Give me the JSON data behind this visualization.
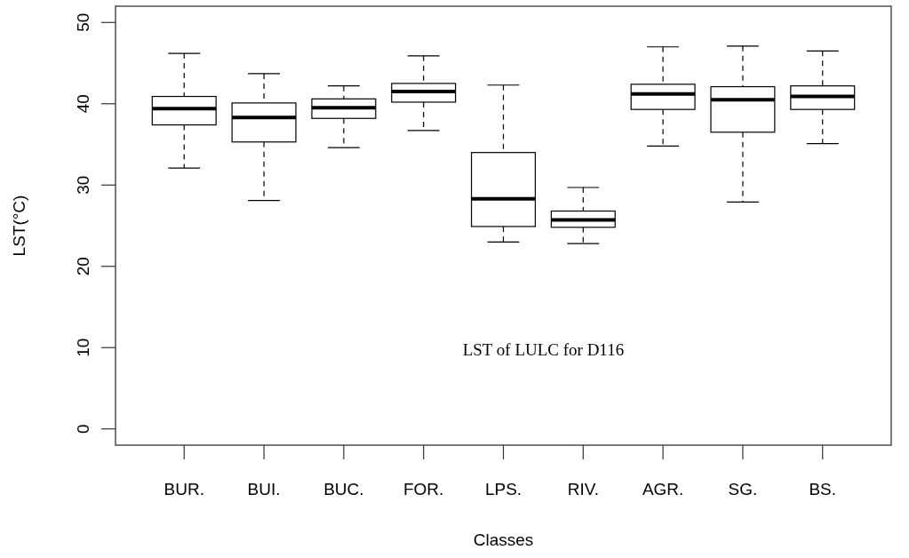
{
  "chart_data": {
    "type": "box",
    "xlabel": "Classes",
    "ylabel": "LST(°C)",
    "annotations": [
      "LST of LULC for D116"
    ],
    "categories": [
      "BUR.",
      "BUI.",
      "BUC.",
      "FOR.",
      "LPS.",
      "RIV.",
      "AGR.",
      "SG.",
      "BS."
    ],
    "ylim": [
      -2,
      52
    ],
    "yticks": [
      0,
      10,
      20,
      30,
      40,
      50
    ],
    "boxes": [
      {
        "low": 32.1,
        "q1": 37.4,
        "median": 39.4,
        "q3": 40.9,
        "high": 46.2
      },
      {
        "low": 28.1,
        "q1": 35.3,
        "median": 38.3,
        "q3": 40.1,
        "high": 43.7
      },
      {
        "low": 34.6,
        "q1": 38.2,
        "median": 39.5,
        "q3": 40.6,
        "high": 42.2
      },
      {
        "low": 36.7,
        "q1": 40.2,
        "median": 41.5,
        "q3": 42.5,
        "high": 45.9
      },
      {
        "low": 23.0,
        "q1": 24.9,
        "median": 28.3,
        "q3": 34.0,
        "high": 42.3
      },
      {
        "low": 22.8,
        "q1": 24.8,
        "median": 25.7,
        "q3": 26.8,
        "high": 29.7
      },
      {
        "low": 34.8,
        "q1": 39.3,
        "median": 41.2,
        "q3": 42.4,
        "high": 47.0
      },
      {
        "low": 27.9,
        "q1": 36.5,
        "median": 40.5,
        "q3": 42.1,
        "high": 47.1
      },
      {
        "low": 35.1,
        "q1": 39.3,
        "median": 40.9,
        "q3": 42.2,
        "high": 46.5
      }
    ]
  }
}
